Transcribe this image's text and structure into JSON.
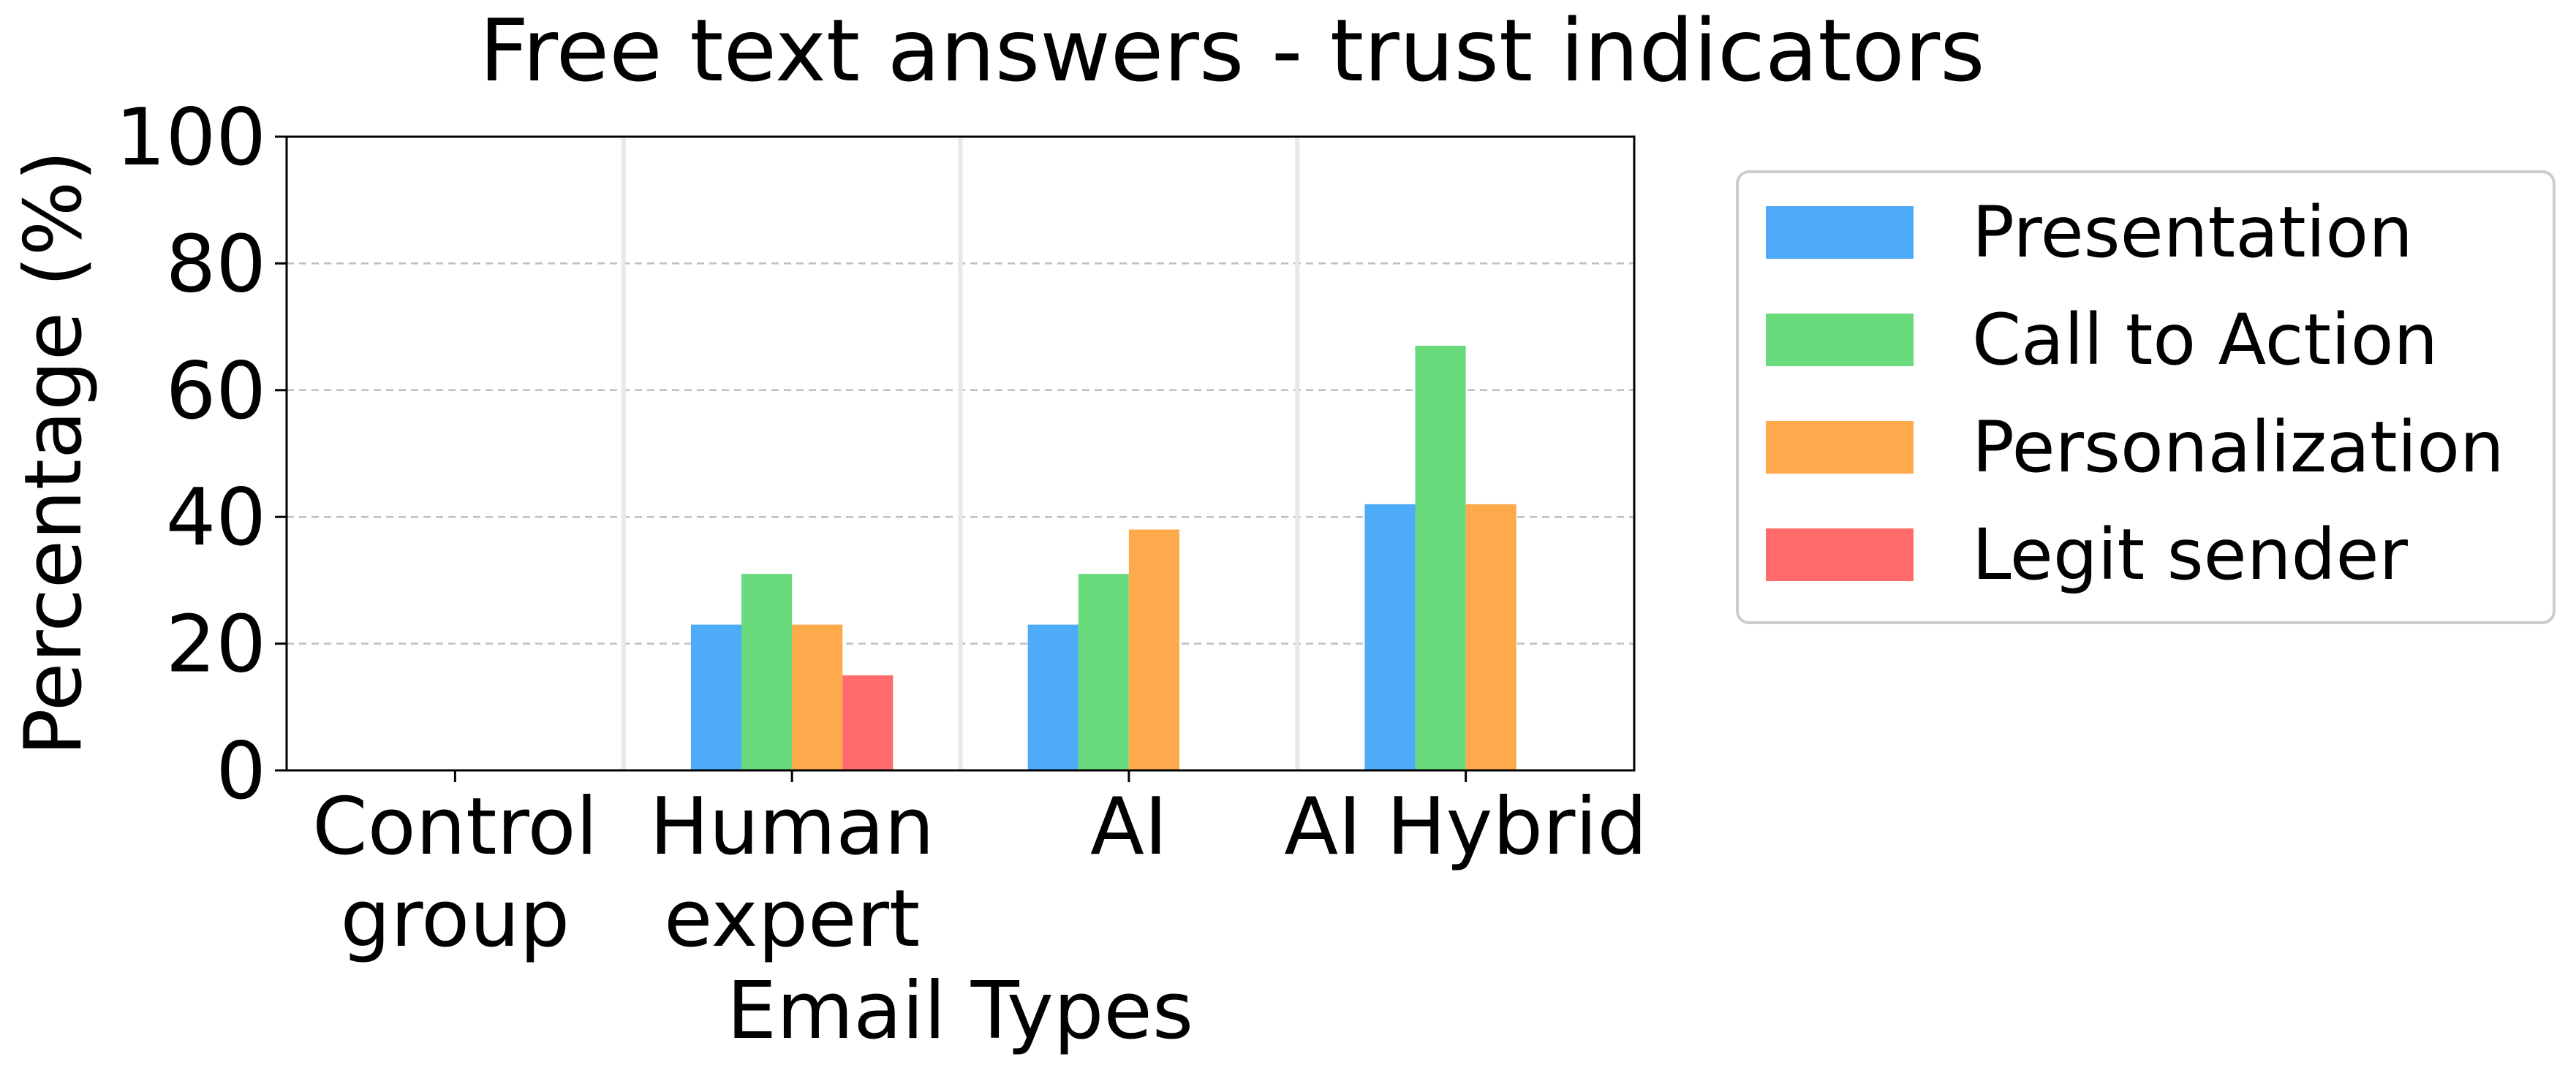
{
  "chart_data": {
    "type": "bar",
    "title": "Free text answers - trust indicators",
    "xlabel": "Email Types",
    "ylabel": "Percentage (%)",
    "ylim": [
      0,
      100
    ],
    "yticks": [
      "0",
      "20",
      "40",
      "60",
      "80",
      "100"
    ],
    "grid": "horizontal dashed",
    "legend_position": "outside-right",
    "categories": [
      [
        "Control",
        "group"
      ],
      [
        "Human",
        "expert"
      ],
      [
        "AI"
      ],
      [
        "AI Hybrid"
      ]
    ],
    "series": [
      {
        "name": "Presentation",
        "color": "#4dabf7",
        "values": [
          0,
          23,
          23,
          42
        ]
      },
      {
        "name": "Call to Action",
        "color": "#69db7c",
        "values": [
          0,
          31,
          31,
          67
        ]
      },
      {
        "name": "Personalization",
        "color": "#ffa94d",
        "values": [
          0,
          23,
          38,
          42
        ]
      },
      {
        "name": "Legit sender",
        "color": "#ff6b6b",
        "values": [
          0,
          15,
          0,
          0
        ]
      }
    ]
  }
}
